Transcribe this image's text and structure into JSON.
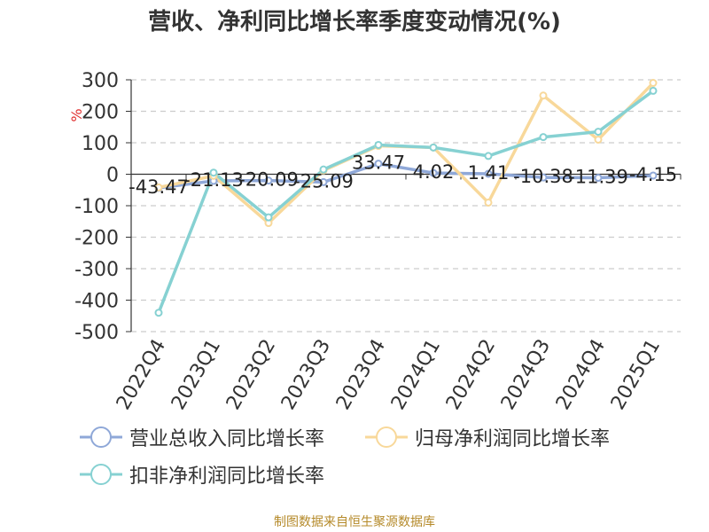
{
  "title": "营收、净利同比增长率季度变动情况(%)",
  "footer": "制图数据来自恒生聚源数据库",
  "chart_data": {
    "type": "line",
    "categories": [
      "2022Q4",
      "2023Q1",
      "2023Q2",
      "2023Q3",
      "2023Q4",
      "2024Q1",
      "2024Q2",
      "2024Q3",
      "2024Q4",
      "2025Q1"
    ],
    "ylabel": "%",
    "ylim": [
      -500,
      300
    ],
    "yticks": [
      300,
      200,
      100,
      0,
      -100,
      -200,
      -300,
      -400,
      -500
    ],
    "grid": true,
    "legend_position": "bottom",
    "series": [
      {
        "name": "营业总收入同比增长率",
        "color": "#8fa8d8",
        "values": [
          -43.47,
          -21.13,
          -20.09,
          -25.09,
          33.47,
          4.02,
          1.41,
          -10.38,
          -11.39,
          -4.15
        ],
        "labels": [
          "-43.47",
          "-21.13",
          "-20.09",
          "-25.09",
          "33.47",
          "4.02",
          "1.41",
          "-10.38",
          "-11.39",
          "-4.15"
        ],
        "show_labels": true
      },
      {
        "name": "归母净利润同比增长率",
        "color": "#f8d89a",
        "values": [
          -42,
          -5,
          -155,
          12,
          90,
          85,
          -90,
          250,
          110,
          290
        ],
        "show_labels": false
      },
      {
        "name": "扣非净利润同比增长率",
        "color": "#86d1d2",
        "values": [
          -440,
          5,
          -137,
          15,
          93,
          85,
          58,
          118,
          135,
          265
        ],
        "show_labels": false
      }
    ]
  }
}
